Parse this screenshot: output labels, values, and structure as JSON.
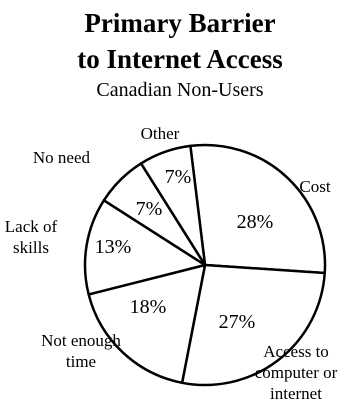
{
  "chart_data": {
    "type": "pie",
    "title_lines": [
      "Primary Barrier",
      "to Internet Access"
    ],
    "subtitle": "Canadian Non-Users",
    "slices": [
      {
        "label_lines": [
          "Cost"
        ],
        "value": 28,
        "value_label": "28%"
      },
      {
        "label_lines": [
          "Access to",
          "computer or",
          "internet"
        ],
        "value": 27,
        "value_label": "27%"
      },
      {
        "label_lines": [
          "Not enough",
          "time"
        ],
        "value": 18,
        "value_label": "18%"
      },
      {
        "label_lines": [
          "Lack of",
          "skills"
        ],
        "value": 13,
        "value_label": "13%"
      },
      {
        "label_lines": [
          "No need"
        ],
        "value": 7,
        "value_label": "7%"
      },
      {
        "label_lines": [
          "Other"
        ],
        "value": 7,
        "value_label": "7%"
      }
    ]
  },
  "colors": {
    "background": "#ffffff",
    "stroke": "#000000",
    "fill": "#ffffff"
  }
}
